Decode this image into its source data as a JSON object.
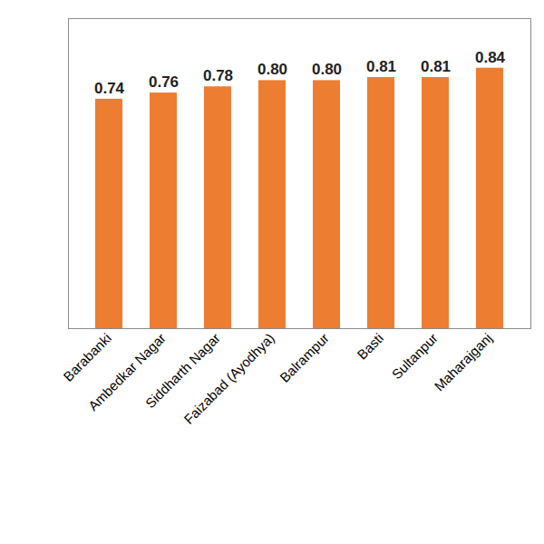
{
  "chart_data": {
    "type": "bar",
    "categories": [
      "Barabanki",
      "Ambedkar Nagar",
      "Siddharth Nagar",
      "Faizabad (Ayodhya)",
      "Balrampur",
      "Basti",
      "Sultanpur",
      "Maharajganj"
    ],
    "values": [
      0.74,
      0.76,
      0.78,
      0.8,
      0.8,
      0.81,
      0.81,
      0.84
    ],
    "value_labels": [
      "0.74",
      "0.76",
      "0.78",
      "0.80",
      "0.80",
      "0.81",
      "0.81",
      "0.84"
    ],
    "color": "#ed7d31",
    "ylim": [
      0,
      1
    ],
    "yticks": [],
    "grid": false,
    "data_labels": true,
    "tick_labels": "x"
  }
}
